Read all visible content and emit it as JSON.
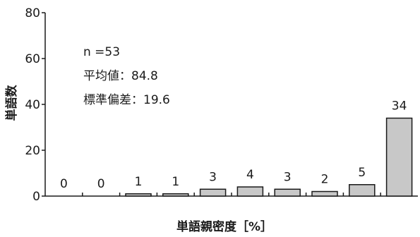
{
  "chart_data": {
    "type": "bar",
    "xlabel": "単語親密度［%］",
    "ylabel": "単語数",
    "ylim": [
      0,
      80
    ],
    "yticks": [
      0,
      20,
      40,
      60,
      80
    ],
    "values": [
      0,
      0,
      1,
      1,
      3,
      4,
      3,
      2,
      5,
      34
    ],
    "data_labels": [
      "0",
      "0",
      "1",
      "1",
      "3",
      "4",
      "3",
      "2",
      "5",
      "34"
    ],
    "annotations": {
      "n_label": "n =53",
      "mean_label": "平均値：84.8",
      "sd_label": "標準偏差：19.6"
    },
    "colors": {
      "bar_fill": "#c8c8c8",
      "bar_stroke": "#1a1a1a",
      "axis": "#1a1a1a"
    }
  }
}
